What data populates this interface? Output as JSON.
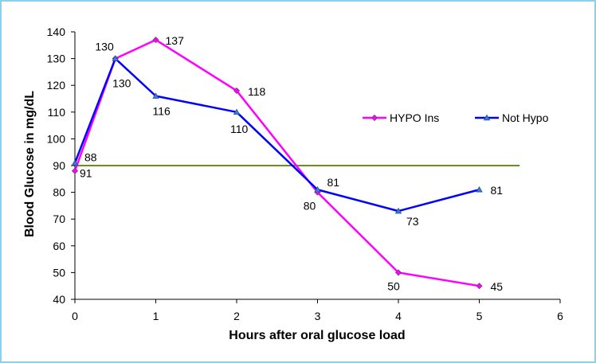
{
  "chart_data": {
    "type": "line",
    "title": "",
    "xlabel": "Hours after oral glucose load",
    "ylabel": "Blood Glucose in mg/dL",
    "xlim": [
      0,
      6
    ],
    "ylim": [
      40,
      140
    ],
    "xticks": [
      "0",
      "1",
      "2",
      "3",
      "4",
      "5",
      "6"
    ],
    "yticks": [
      "40",
      "50",
      "60",
      "70",
      "80",
      "90",
      "100",
      "110",
      "120",
      "130",
      "140"
    ],
    "grid": false,
    "legend_position": "right",
    "series": [
      {
        "name": "HYPO Ins",
        "color": "#ff00ff",
        "marker": "diamond",
        "x": [
          0,
          0.5,
          1,
          2,
          3,
          4,
          5
        ],
        "values": [
          88,
          130,
          137,
          118,
          80,
          50,
          45
        ],
        "labels": [
          "88",
          "130",
          "137",
          "118",
          "80",
          "50",
          "45"
        ]
      },
      {
        "name": "Not Hypo",
        "color": "#0000ff",
        "marker": "triangle",
        "x": [
          0,
          0.5,
          1,
          2,
          3,
          4,
          5
        ],
        "values": [
          91,
          130,
          116,
          110,
          81,
          73,
          81
        ],
        "labels": [
          "91",
          "130",
          "116",
          "110",
          "81",
          "73",
          "81"
        ]
      }
    ],
    "reference_line": {
      "y": 90,
      "x_start": 0,
      "x_end": 5.5,
      "color": "#6b8e23"
    }
  }
}
